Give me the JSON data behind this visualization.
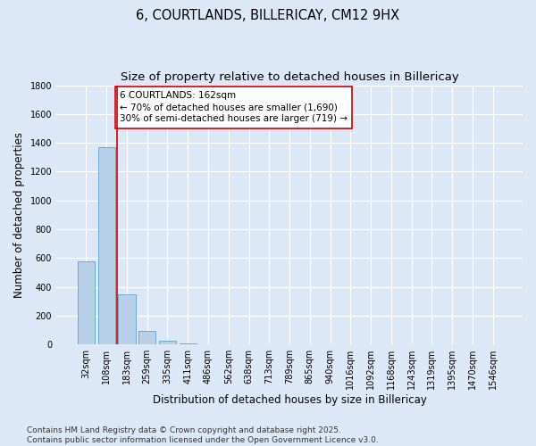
{
  "title_line1": "6, COURTLANDS, BILLERICAY, CM12 9HX",
  "title_line2": "Size of property relative to detached houses in Billericay",
  "xlabel": "Distribution of detached houses by size in Billericay",
  "ylabel": "Number of detached properties",
  "categories": [
    "32sqm",
    "108sqm",
    "183sqm",
    "259sqm",
    "335sqm",
    "411sqm",
    "486sqm",
    "562sqm",
    "638sqm",
    "713sqm",
    "789sqm",
    "865sqm",
    "940sqm",
    "1016sqm",
    "1092sqm",
    "1168sqm",
    "1243sqm",
    "1319sqm",
    "1395sqm",
    "1470sqm",
    "1546sqm"
  ],
  "values": [
    580,
    1370,
    350,
    95,
    25,
    10,
    0,
    0,
    0,
    0,
    0,
    0,
    0,
    0,
    0,
    0,
    0,
    0,
    0,
    0,
    0
  ],
  "bar_color": "#b8d0e8",
  "bar_edge_color": "#6aaad4",
  "vline_color": "#cc0000",
  "vline_x": 1.5,
  "annotation_text": "6 COURTLANDS: 162sqm\n← 70% of detached houses are smaller (1,690)\n30% of semi-detached houses are larger (719) →",
  "annotation_box_color": "#ffffff",
  "annotation_border_color": "#cc0000",
  "ylim": [
    0,
    1800
  ],
  "yticks": [
    0,
    200,
    400,
    600,
    800,
    1000,
    1200,
    1400,
    1600,
    1800
  ],
  "bg_color": "#dce8f5",
  "grid_color": "#ffffff",
  "footer_line1": "Contains HM Land Registry data © Crown copyright and database right 2025.",
  "footer_line2": "Contains public sector information licensed under the Open Government Licence v3.0.",
  "title_fontsize": 10.5,
  "subtitle_fontsize": 9.5,
  "axis_label_fontsize": 8.5,
  "tick_fontsize": 7,
  "annotation_fontsize": 7.5,
  "footer_fontsize": 6.5
}
